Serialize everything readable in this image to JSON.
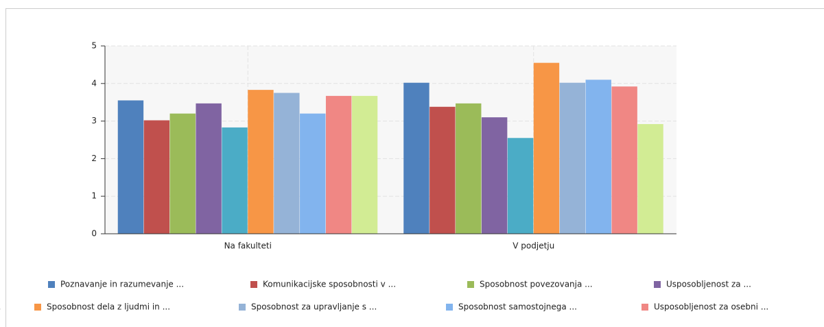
{
  "chart_data": {
    "type": "bar",
    "categories": [
      "Na fakulteti",
      "V podjetju"
    ],
    "series": [
      {
        "name": "Poznavanje in razumevanje ...",
        "color": "#4f81bd",
        "values": [
          3.55,
          4.02
        ]
      },
      {
        "name": "Komunikacijske sposobnosti v ...",
        "color": "#c0504d",
        "values": [
          3.02,
          3.38
        ]
      },
      {
        "name": "Sposobnost povezovanja ...",
        "color": "#9bbb59",
        "values": [
          3.2,
          3.47
        ]
      },
      {
        "name": "Usposobljenost za ...",
        "color": "#8064a2",
        "values": [
          3.47,
          3.1
        ]
      },
      {
        "name": "...",
        "color": "#4bacc6",
        "values": [
          2.83,
          2.55
        ]
      },
      {
        "name": "Sposobnost dela z ljudmi in ...",
        "color": "#f79646",
        "values": [
          3.83,
          4.55
        ]
      },
      {
        "name": "Sposobnost za upravljanje s ...",
        "color": "#95b3d7",
        "values": [
          3.75,
          4.02
        ]
      },
      {
        "name": "Sposobnost samostojnega ...",
        "color": "#82b4ee",
        "values": [
          3.2,
          4.1
        ]
      },
      {
        "name": "Usposobljenost za osebni ...",
        "color": "#f08784",
        "values": [
          3.67,
          3.92
        ]
      },
      {
        "name": null,
        "color": "#d2ec94",
        "values": [
          3.67,
          2.92
        ]
      }
    ],
    "ylim": [
      0,
      5
    ],
    "yticks": [
      0,
      1,
      2,
      3,
      4,
      5
    ],
    "grid": true
  }
}
